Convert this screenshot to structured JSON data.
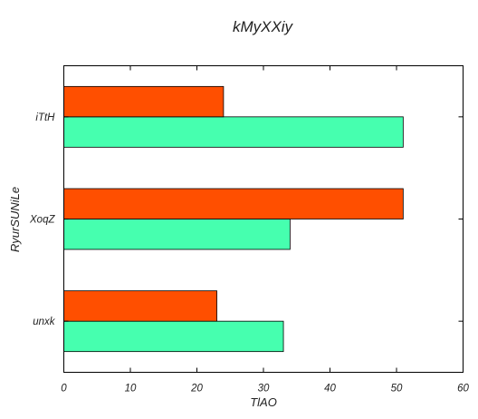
{
  "chart_data": {
    "type": "bar",
    "orientation": "horizontal",
    "title": "kMyXXiy",
    "xlabel": "TlAO",
    "ylabel": "RyurSUNiLe",
    "categories": [
      "unxk",
      "XoqZ",
      "iTtH"
    ],
    "series": [
      {
        "values": [
          33,
          34,
          51
        ],
        "color": "#46ffaf"
      },
      {
        "values": [
          23,
          51,
          24
        ],
        "color": "#ff4f00"
      }
    ],
    "xlim": [
      0,
      60
    ],
    "xticks": [
      0,
      10,
      20,
      30,
      40,
      50,
      60
    ],
    "grid": false,
    "legend": "none"
  }
}
